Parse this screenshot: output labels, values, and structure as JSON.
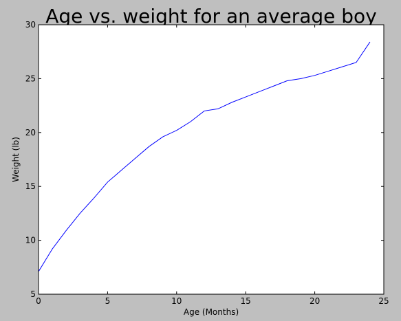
{
  "chart_data": {
    "type": "line",
    "title": "Age vs. weight for an average boy",
    "xlabel": "Age (Months)",
    "ylabel": "Weight (lb)",
    "xlim": [
      0,
      25
    ],
    "ylim": [
      5,
      30
    ],
    "xticks": [
      0,
      5,
      10,
      15,
      20,
      25
    ],
    "yticks": [
      5,
      10,
      15,
      20,
      25,
      30
    ],
    "grid": false,
    "colors": {
      "line": "#0000ff",
      "figure_bg": "#bfbfbf",
      "plot_bg": "#ffffff"
    },
    "series": [
      {
        "x": [
          0,
          1,
          2,
          3,
          4,
          5,
          6,
          7,
          8,
          9,
          10,
          11,
          12,
          13,
          14,
          15,
          16,
          17,
          18,
          19,
          20,
          21,
          22,
          23,
          24
        ],
        "y": [
          7.1,
          9.2,
          10.9,
          12.5,
          13.9,
          15.4,
          16.5,
          17.6,
          18.7,
          19.6,
          20.2,
          21.0,
          22.0,
          22.2,
          22.8,
          23.3,
          23.8,
          24.3,
          24.8,
          25.0,
          25.3,
          25.7,
          26.1,
          26.5,
          28.4
        ]
      }
    ]
  }
}
